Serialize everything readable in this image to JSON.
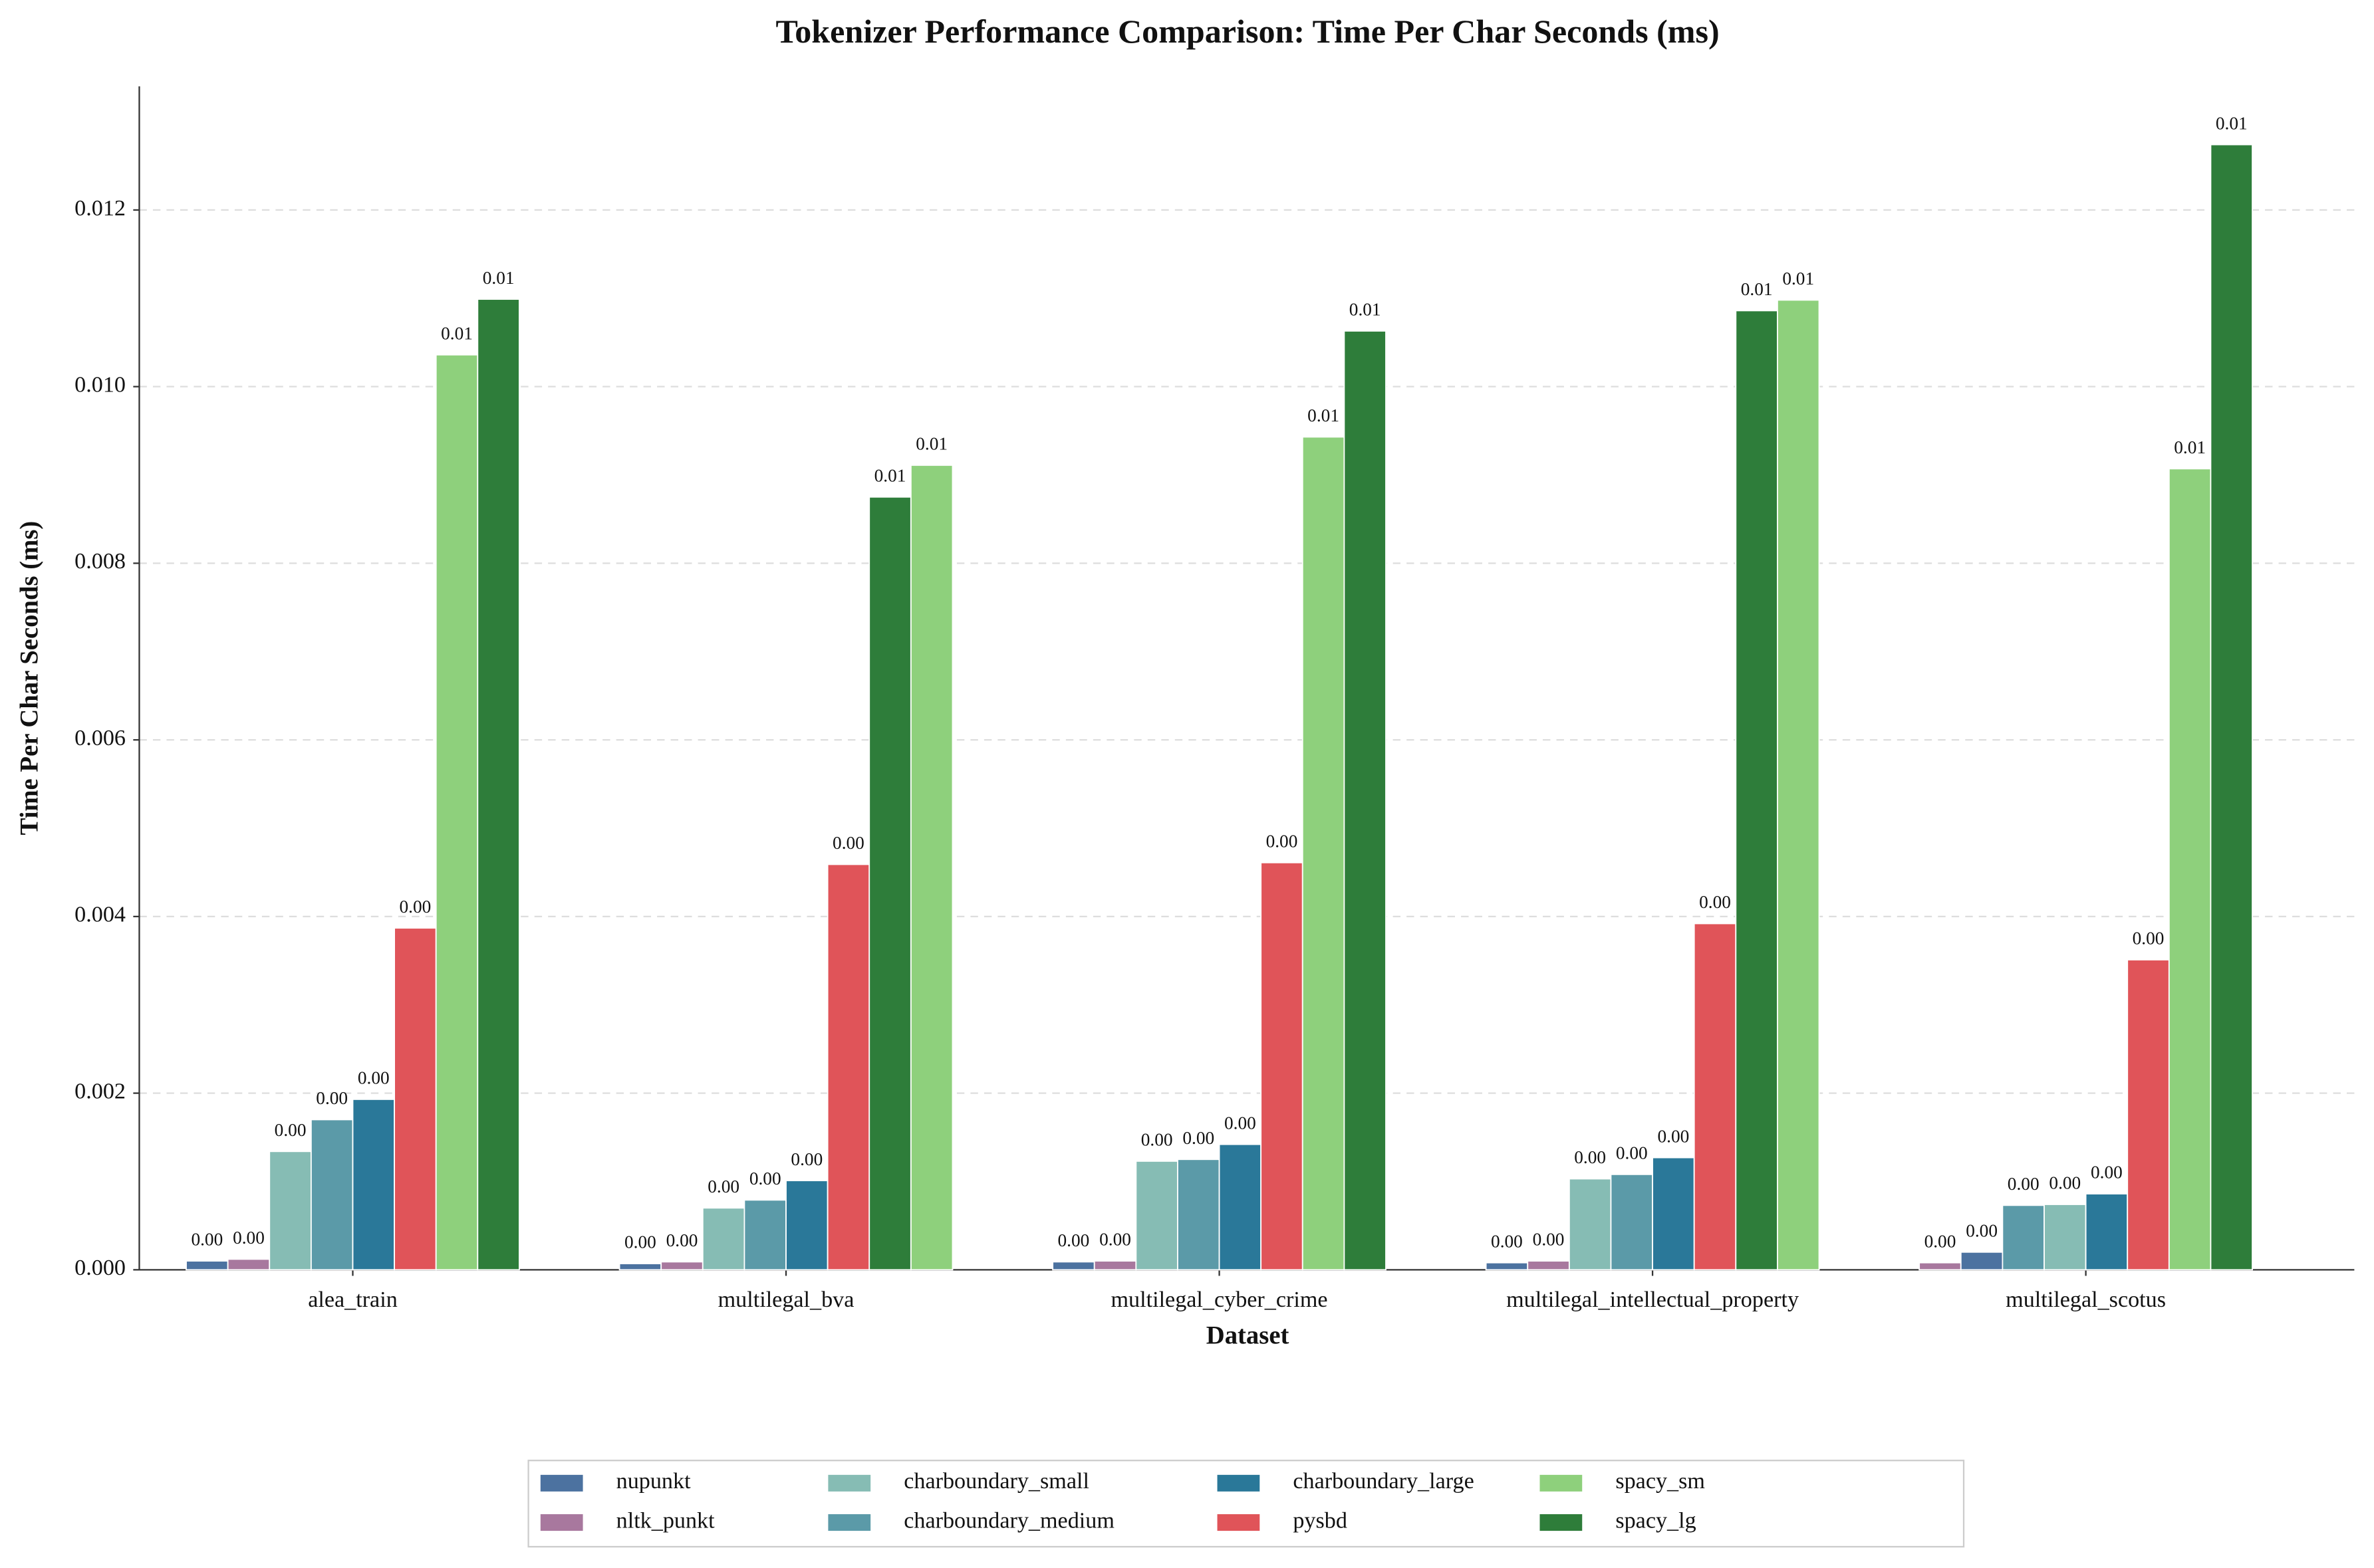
{
  "chart_data": {
    "type": "bar",
    "title": "Tokenizer Performance Comparison: Time Per Char Seconds (ms)",
    "x_label": "Dataset",
    "y_label": "Time Per Char Seconds (ms)",
    "categories": [
      "alea_train",
      "multilegal_bva",
      "multilegal_cyber_crime",
      "multilegal_intellectual_property",
      "multilegal_scotus"
    ],
    "series": [
      {
        "name": "nupunkt",
        "color": "#4c72a0",
        "values": [
          0.0001,
          7e-05,
          9e-05,
          8e-05,
          0.0002
        ],
        "value_labels": [
          "0.00",
          "0.00",
          "0.00",
          "0.00",
          "0.00"
        ]
      },
      {
        "name": "nltk_punkt",
        "color": "#a8789e",
        "values": [
          0.00012,
          9e-05,
          0.0001,
          0.0001,
          8e-05
        ],
        "value_labels": [
          "0.00",
          "0.00",
          "0.00",
          "0.00",
          "0.00"
        ]
      },
      {
        "name": "charboundary_small",
        "color": "#86bcb4",
        "values": [
          0.00134,
          0.0007,
          0.00123,
          0.00103,
          0.00074
        ],
        "value_labels": [
          "0.00",
          "0.00",
          "0.00",
          "0.00",
          "0.00"
        ]
      },
      {
        "name": "charboundary_medium",
        "color": "#5b9aa8",
        "values": [
          0.0017,
          0.00079,
          0.00125,
          0.00108,
          0.00073
        ],
        "value_labels": [
          "0.00",
          "0.00",
          "0.00",
          "0.00",
          "0.00"
        ]
      },
      {
        "name": "charboundary_large",
        "color": "#2a7899",
        "values": [
          0.00193,
          0.00101,
          0.00142,
          0.00127,
          0.00086
        ],
        "value_labels": [
          "0.00",
          "0.00",
          "0.00",
          "0.00",
          "0.00"
        ]
      },
      {
        "name": "pysbd",
        "color": "#e05459",
        "values": [
          0.00387,
          0.00459,
          0.00461,
          0.00392,
          0.00351
        ],
        "value_labels": [
          "0.00",
          "0.00",
          "0.00",
          "0.00",
          "0.00"
        ]
      },
      {
        "name": "spacy_sm",
        "color": "#8ed07c",
        "values": [
          0.01036,
          0.00911,
          0.00943,
          0.01098,
          0.00907
        ],
        "value_labels": [
          "0.01",
          "0.01",
          "0.01",
          "0.01",
          "0.01"
        ]
      },
      {
        "name": "spacy_lg",
        "color": "#2e7d3a",
        "values": [
          0.01099,
          0.00875,
          0.01063,
          0.01086,
          0.01274
        ],
        "value_labels": [
          "0.01",
          "0.01",
          "0.01",
          "0.01",
          "0.01"
        ]
      }
    ],
    "ylim": [
      0,
      0.0134
    ],
    "yticks": [
      {
        "value": 0,
        "label": "0.000"
      },
      {
        "value": 0.002,
        "label": "0.002"
      },
      {
        "value": 0.004,
        "label": "0.004"
      },
      {
        "value": 0.006,
        "label": "0.006"
      },
      {
        "value": 0.008,
        "label": "0.008"
      },
      {
        "value": 0.01,
        "label": "0.010"
      },
      {
        "value": 0.012,
        "label": "0.012"
      }
    ],
    "grid": true,
    "legend": "bottom"
  }
}
